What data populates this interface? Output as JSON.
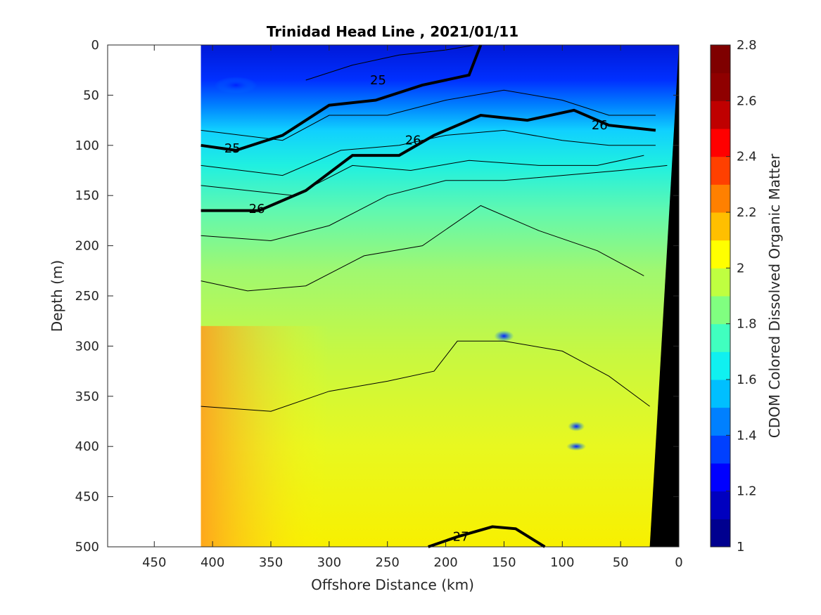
{
  "chart_data": {
    "type": "heatmap",
    "title": "Trinidad Head Line , 2021/01/11",
    "xlabel": "Offshore Distance (km)",
    "ylabel": "Depth (m)",
    "colorbar_label": "CDOM Colored Dissolved Organic Matter",
    "xlim": [
      490,
      0
    ],
    "ylim": [
      0,
      500
    ],
    "x_reversed": true,
    "y_reversed": true,
    "x_ticks": [
      450,
      400,
      350,
      300,
      250,
      200,
      150,
      100,
      50,
      0
    ],
    "y_ticks": [
      0,
      50,
      100,
      150,
      200,
      250,
      300,
      350,
      400,
      450,
      500
    ],
    "clim": [
      1,
      2.8
    ],
    "colorbar_ticks": [
      "1",
      "1.2",
      "1.4",
      "1.6",
      "1.8",
      "2",
      "2.2",
      "2.4",
      "2.6",
      "2.8"
    ],
    "colormap_levels": [
      "#00008f",
      "#0000bf",
      "#0000ff",
      "#0040ff",
      "#0080ff",
      "#00bfff",
      "#10f0f0",
      "#40ffbf",
      "#80ff80",
      "#bfff40",
      "#ffff00",
      "#ffbf00",
      "#ff8000",
      "#ff4000",
      "#ff0000",
      "#bf0000",
      "#8f0000",
      "#7f0000"
    ],
    "data_extent_km": [
      410,
      0
    ],
    "seafloor_wedge": {
      "color": "#000000",
      "points": [
        [
          0,
          0
        ],
        [
          25,
          500
        ],
        [
          0,
          500
        ]
      ]
    },
    "grid": false,
    "contour_labels": [
      {
        "text": "25",
        "x": 258,
        "y": 35
      },
      {
        "text": "25",
        "x": 383,
        "y": 103
      },
      {
        "text": "26",
        "x": 362,
        "y": 163
      },
      {
        "text": "26",
        "x": 228,
        "y": 95
      },
      {
        "text": "26",
        "x": 68,
        "y": 80
      },
      {
        "text": "27",
        "x": 187,
        "y": 490
      }
    ]
  }
}
